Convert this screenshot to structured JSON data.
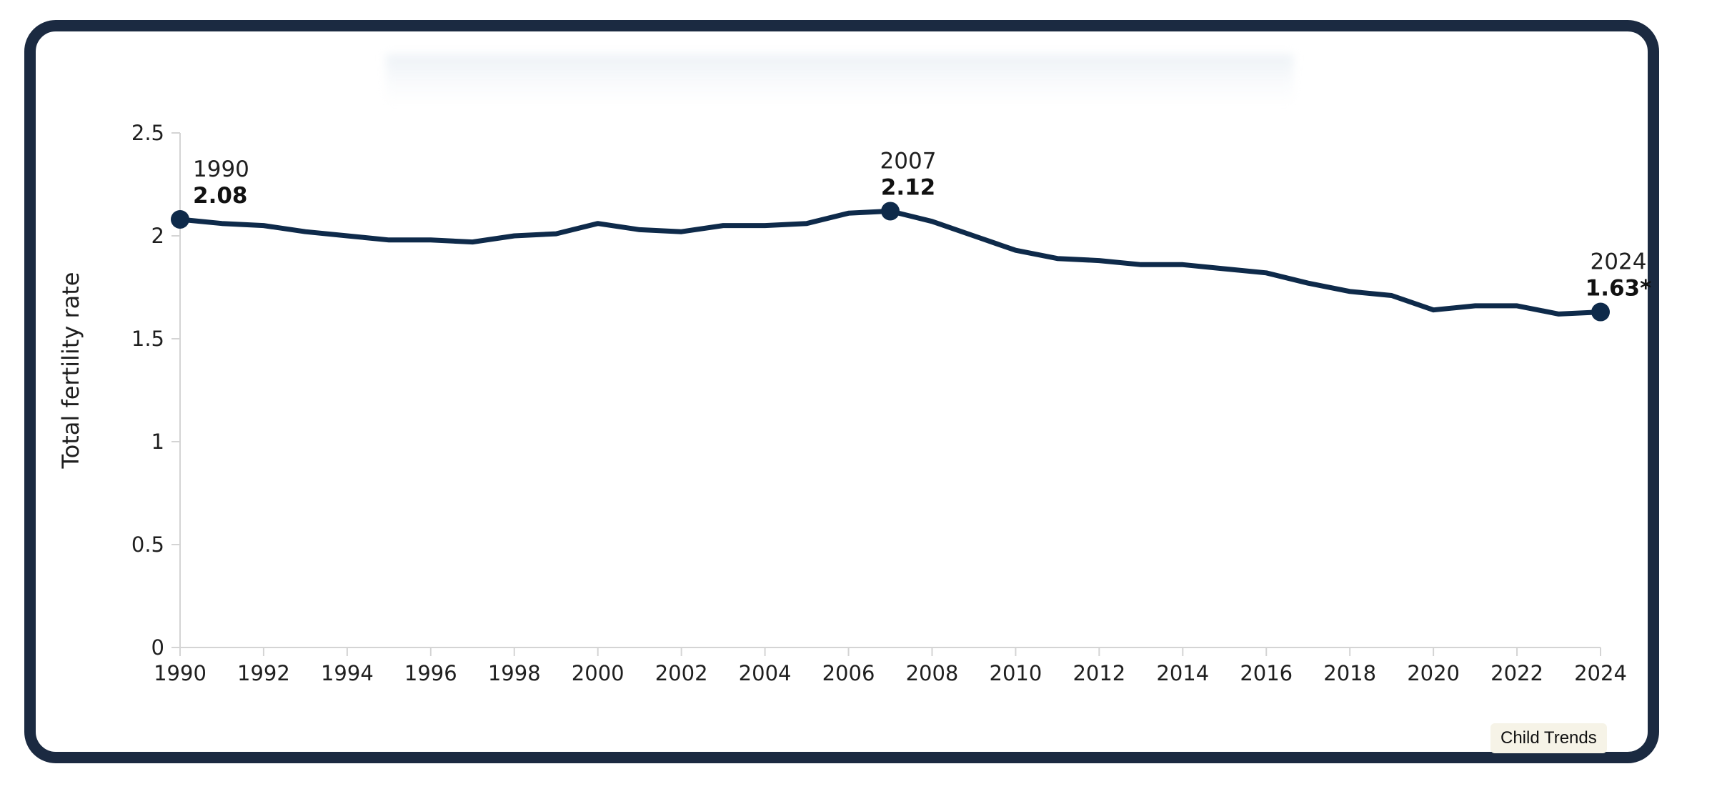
{
  "chart_data": {
    "type": "line",
    "title": "",
    "xlabel": "",
    "ylabel": "Total fertility rate",
    "ylim": [
      0,
      2.5
    ],
    "xlim": [
      1990,
      2024
    ],
    "y_ticks": [
      "0",
      "0.5",
      "1",
      "1.5",
      "2",
      "2.5"
    ],
    "x_ticks": [
      "1990",
      "1992",
      "1994",
      "1996",
      "1998",
      "2000",
      "2002",
      "2004",
      "2006",
      "2008",
      "2010",
      "2012",
      "2014",
      "2016",
      "2018",
      "2020",
      "2022",
      "2024"
    ],
    "grid": false,
    "legend": "none",
    "series": [
      {
        "color": "#0e2a4a",
        "x": [
          1990,
          1991,
          1992,
          1993,
          1994,
          1995,
          1996,
          1997,
          1998,
          1999,
          2000,
          2001,
          2002,
          2003,
          2004,
          2005,
          2006,
          2007,
          2008,
          2009,
          2010,
          2011,
          2012,
          2013,
          2014,
          2015,
          2016,
          2017,
          2018,
          2019,
          2020,
          2021,
          2022,
          2023,
          2024
        ],
        "values": [
          2.08,
          2.06,
          2.05,
          2.02,
          2.0,
          1.98,
          1.98,
          1.97,
          2.0,
          2.01,
          2.06,
          2.03,
          2.02,
          2.05,
          2.05,
          2.06,
          2.11,
          2.12,
          2.07,
          2.0,
          1.93,
          1.89,
          1.88,
          1.86,
          1.86,
          1.84,
          1.82,
          1.77,
          1.73,
          1.71,
          1.64,
          1.66,
          1.66,
          1.62,
          1.63
        ]
      }
    ],
    "annotations": [
      {
        "x": 1990,
        "y": 2.08,
        "year": "1990",
        "value": "2.08"
      },
      {
        "x": 2007,
        "y": 2.12,
        "year": "2007",
        "value": "2.12"
      },
      {
        "x": 2024,
        "y": 1.63,
        "year": "2024",
        "value": "1.63*"
      }
    ]
  },
  "source_badge": "Child Trends"
}
